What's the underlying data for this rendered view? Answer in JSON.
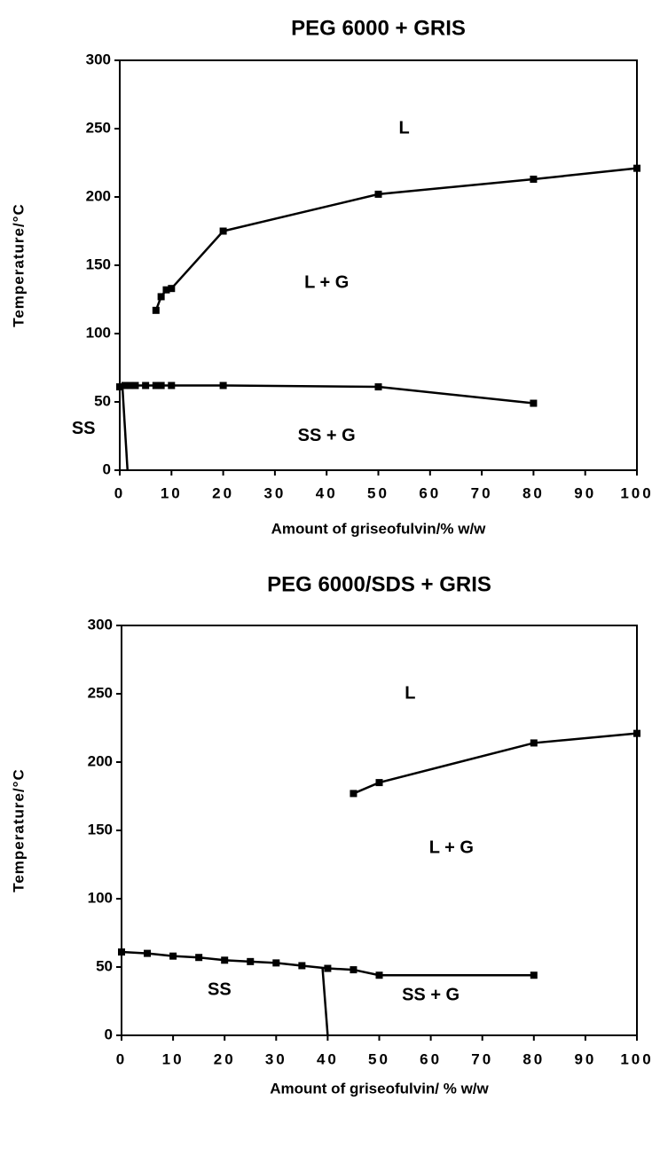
{
  "chart_data": [
    {
      "type": "line",
      "title": "PEG 6000 + GRIS",
      "xlabel": "Amount of griseofulvin/% w/w",
      "ylabel": "Temperature/°C",
      "xlim": [
        0,
        100
      ],
      "xticks": [
        0,
        10,
        20,
        30,
        40,
        50,
        60,
        70,
        80,
        90,
        100
      ],
      "ylim": [
        0,
        300
      ],
      "yticks": [
        0,
        50,
        100,
        150,
        200,
        250,
        300
      ],
      "annotations": [
        "L",
        "L + G",
        "SS",
        "SS + G"
      ],
      "series": [
        {
          "color": "#000000",
          "markers": true,
          "x": [
            7,
            8,
            9,
            10,
            20,
            50,
            80,
            100
          ],
          "values": [
            117,
            127,
            132,
            133,
            175,
            202,
            213,
            221
          ]
        },
        {
          "color": "#000000",
          "markers": true,
          "x": [
            0,
            1,
            2,
            3,
            5,
            7,
            8,
            10,
            20,
            50,
            80
          ],
          "values": [
            61,
            62,
            62,
            62,
            62,
            62,
            62,
            62,
            62,
            61,
            49
          ]
        },
        {
          "color": "#000000",
          "markers": false,
          "x": [
            0.5,
            1.5
          ],
          "values": [
            62,
            0
          ]
        }
      ]
    },
    {
      "type": "line",
      "title": "PEG 6000/SDS + GRIS",
      "xlabel": "Amount of griseofulvin/ % w/w",
      "ylabel": "Temperature/°C",
      "xlim": [
        0,
        100
      ],
      "xticks": [
        0,
        10,
        20,
        30,
        40,
        50,
        60,
        70,
        80,
        90,
        100
      ],
      "ylim": [
        0,
        300
      ],
      "yticks": [
        0,
        50,
        100,
        150,
        200,
        250,
        300
      ],
      "annotations": [
        "L",
        "L + G",
        "SS",
        "SS + G"
      ],
      "series": [
        {
          "color": "#000000",
          "markers": true,
          "x": [
            45,
            50,
            80,
            100
          ],
          "values": [
            177,
            185,
            214,
            221
          ]
        },
        {
          "color": "#000000",
          "markers": true,
          "x": [
            0,
            5,
            10,
            15,
            20,
            25,
            30,
            35,
            40,
            45,
            50,
            80
          ],
          "values": [
            61,
            60,
            58,
            57,
            55,
            54,
            53,
            51,
            49,
            48,
            44,
            44
          ]
        },
        {
          "color": "#000000",
          "markers": false,
          "x": [
            39,
            40
          ],
          "values": [
            49,
            0
          ]
        }
      ]
    }
  ]
}
